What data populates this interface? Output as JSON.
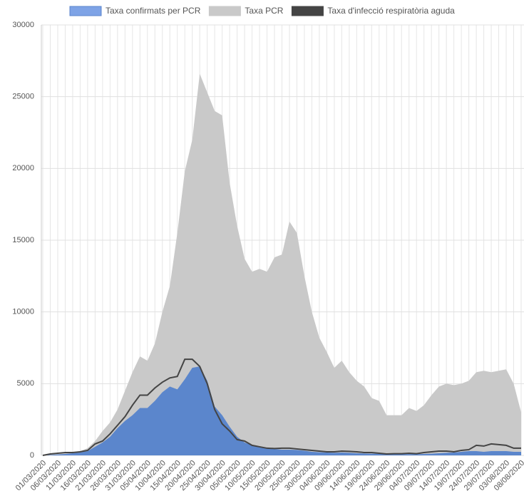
{
  "chart_data": {
    "type": "area",
    "categories": [
      "01/03/2020",
      null,
      "06/03/2020",
      null,
      "11/03/2020",
      null,
      "16/03/2020",
      null,
      "21/03/2020",
      null,
      "26/03/2020",
      null,
      "31/03/2020",
      null,
      "05/04/2020",
      null,
      "10/04/2020",
      null,
      "15/04/2020",
      null,
      "20/04/2020",
      null,
      "25/04/2020",
      null,
      "30/04/2020",
      null,
      "05/05/2020",
      null,
      "10/05/2020",
      null,
      "15/05/2020",
      null,
      "20/05/2020",
      null,
      "25/05/2020",
      null,
      "30/05/2020",
      null,
      "04/06/2020",
      null,
      "09/06/2020",
      null,
      "14/06/2020",
      null,
      "19/06/2020",
      null,
      "24/06/2020",
      null,
      "29/06/2020",
      null,
      "04/07/2020",
      null,
      "09/07/2020",
      null,
      "14/07/2020",
      null,
      "19/07/2020",
      null,
      "24/07/2020",
      null,
      "29/07/2020",
      null,
      "03/08/2020",
      null,
      "08/08/2020"
    ],
    "series": [
      {
        "name": "Taxa confirmats per PCR",
        "color": "#5b86cc",
        "values": [
          0,
          30,
          60,
          100,
          150,
          200,
          300,
          600,
          900,
          1300,
          1900,
          2400,
          2800,
          3300,
          3300,
          3800,
          4400,
          4800,
          4600,
          5300,
          6100,
          6200,
          5200,
          3400,
          2800,
          2000,
          1300,
          900,
          700,
          550,
          500,
          450,
          400,
          400,
          380,
          320,
          250,
          220,
          200,
          180,
          200,
          180,
          150,
          130,
          120,
          110,
          80,
          80,
          80,
          90,
          80,
          100,
          120,
          150,
          180,
          200,
          250,
          300,
          300,
          250,
          300,
          300,
          300,
          250,
          250
        ]
      },
      {
        "name": "Taxa PCR",
        "color": "#c9c9c9",
        "values": [
          0,
          50,
          100,
          150,
          200,
          300,
          500,
          1000,
          1700,
          2300,
          3200,
          4500,
          5800,
          6900,
          6600,
          7800,
          10000,
          11800,
          15500,
          19800,
          22000,
          26600,
          25300,
          24000,
          23700,
          19000,
          16000,
          13700,
          12800,
          13000,
          12800,
          13800,
          14000,
          16300,
          15500,
          12500,
          10000,
          8200,
          7200,
          6100,
          6600,
          5800,
          5200,
          4800,
          4000,
          3800,
          2800,
          2800,
          2800,
          3300,
          3100,
          3500,
          4200,
          4800,
          5000,
          4900,
          5000,
          5200,
          5800,
          5900,
          5800,
          5900,
          6000,
          5000,
          3000
        ]
      },
      {
        "name": "Taxa d'infecció respiratòria aguda",
        "color": "#444444",
        "values": [
          0,
          100,
          150,
          200,
          200,
          250,
          350,
          800,
          1000,
          1500,
          2100,
          2700,
          3500,
          4200,
          4200,
          4700,
          5100,
          5400,
          5500,
          6700,
          6700,
          6200,
          5000,
          3200,
          2200,
          1700,
          1100,
          1000,
          700,
          600,
          500,
          480,
          500,
          500,
          450,
          400,
          350,
          300,
          250,
          250,
          300,
          280,
          250,
          200,
          200,
          150,
          100,
          120,
          120,
          150,
          120,
          200,
          250,
          300,
          300,
          250,
          350,
          400,
          700,
          650,
          800,
          750,
          700,
          500,
          500
        ]
      }
    ],
    "ylim": [
      0,
      30000
    ],
    "yticks": [
      0,
      5000,
      10000,
      15000,
      20000,
      25000,
      30000
    ],
    "grid": true,
    "legend": "top"
  }
}
